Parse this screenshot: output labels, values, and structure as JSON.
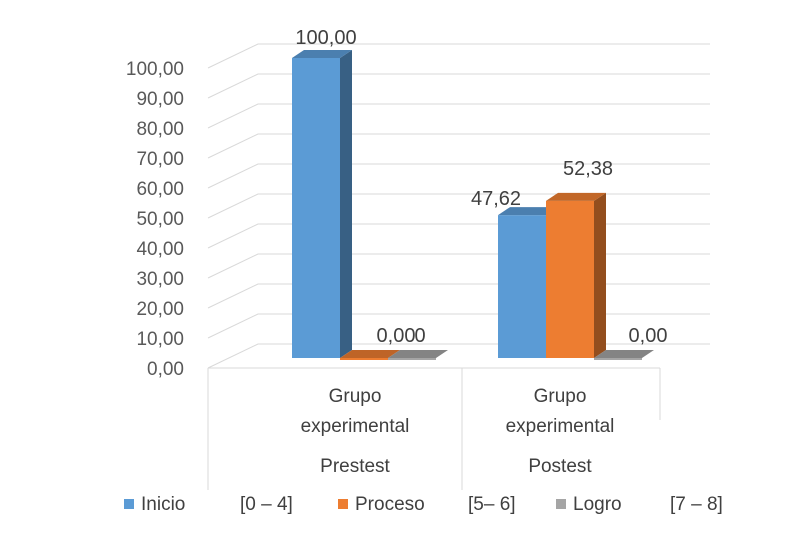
{
  "chart_data": {
    "type": "bar",
    "style": "3d-clustered-column",
    "ylim": [
      0,
      100
    ],
    "y_ticks": [
      "0,00",
      "10,00",
      "20,00",
      "30,00",
      "40,00",
      "50,00",
      "60,00",
      "70,00",
      "80,00",
      "90,00",
      "100,00"
    ],
    "categories": [
      {
        "line1": "Grupo",
        "line2": "experimental",
        "group": "Prestest"
      },
      {
        "line1": "Grupo",
        "line2": "experimental",
        "group": "Postest"
      }
    ],
    "series": [
      {
        "name": "Inicio",
        "range": "[0 – 4]",
        "color": "#5B9BD5",
        "values": [
          100.0,
          47.62
        ],
        "labels": [
          "100,00",
          "47,62"
        ]
      },
      {
        "name": "Proceso",
        "range": "[5– 6]",
        "color": "#ED7D31",
        "values": [
          0.0,
          52.38
        ],
        "labels": [
          "0,00",
          "52,38"
        ]
      },
      {
        "name": "Logro",
        "range": "[7 – 8]",
        "color": "#A5A5A5",
        "values": [
          0.0,
          0.0
        ],
        "labels": [
          "0",
          "0,00"
        ]
      }
    ],
    "grid": true,
    "legend_position": "bottom"
  }
}
